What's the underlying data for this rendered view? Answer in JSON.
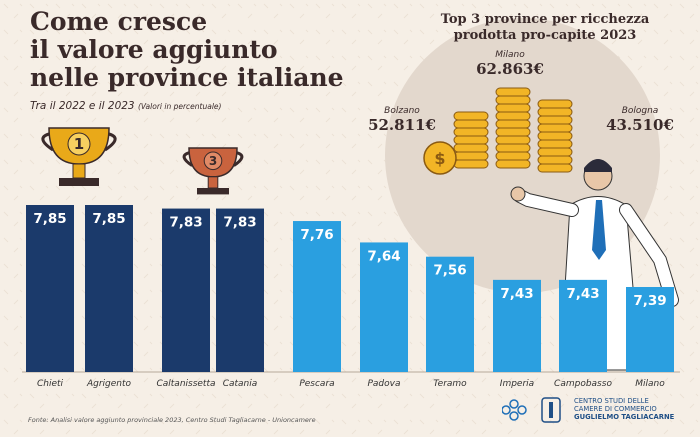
{
  "title_lines": [
    "Come cresce",
    "il valore aggiunto",
    "nelle province italiane"
  ],
  "subtitle": "Tra il 2022 e il 2023",
  "subtitle_note": "(Valori in percentuale)",
  "panel": {
    "title_line1": "Top 3 province per ricchezza",
    "title_line2": "prodotta pro-capite 2023",
    "provinces": [
      {
        "name": "Milano",
        "value": "62.863€"
      },
      {
        "name": "Bolzano",
        "value": "52.811€"
      },
      {
        "name": "Bologna",
        "value": "43.510€"
      }
    ]
  },
  "trophies": [
    {
      "rank": "1",
      "color": "#e9a919"
    },
    {
      "rank": "3",
      "color": "#c9633e"
    }
  ],
  "chart_data": {
    "type": "bar",
    "title": "Come cresce il valore aggiunto nelle province italiane",
    "subtitle": "Tra il 2022 e il 2023 (Valori in percentuale)",
    "categories": [
      "Chieti",
      "Agrigento",
      "Caltanissetta",
      "Catania",
      "Pescara",
      "Padova",
      "Teramo",
      "Imperia",
      "Campobasso",
      "Milano"
    ],
    "values": [
      7.85,
      7.85,
      7.83,
      7.83,
      7.76,
      7.64,
      7.56,
      7.43,
      7.43,
      7.39
    ],
    "labels": [
      "7,85",
      "7,85",
      "7,83",
      "7,83",
      "7,76",
      "7,64",
      "7,56",
      "7,43",
      "7,43",
      "7,39"
    ],
    "colors": [
      "#1b3a6b",
      "#1b3a6b",
      "#1b3a6b",
      "#1b3a6b",
      "#2a9fe0",
      "#2a9fe0",
      "#2a9fe0",
      "#2a9fe0",
      "#2a9fe0",
      "#2a9fe0"
    ],
    "ylim": [
      7.0,
      7.9
    ],
    "xlabel": "",
    "ylabel": ""
  },
  "footer": "Fonte: Analisi valore aggiunto provinciale 2023, Centro Studi Tagliacarne - Unioncamere",
  "logo": {
    "line1": "CENTRO STUDI DELLE",
    "line2": "CAMERE DI COMMERCIO",
    "line3": "GUGLIELMO TAGLIACARNE"
  }
}
